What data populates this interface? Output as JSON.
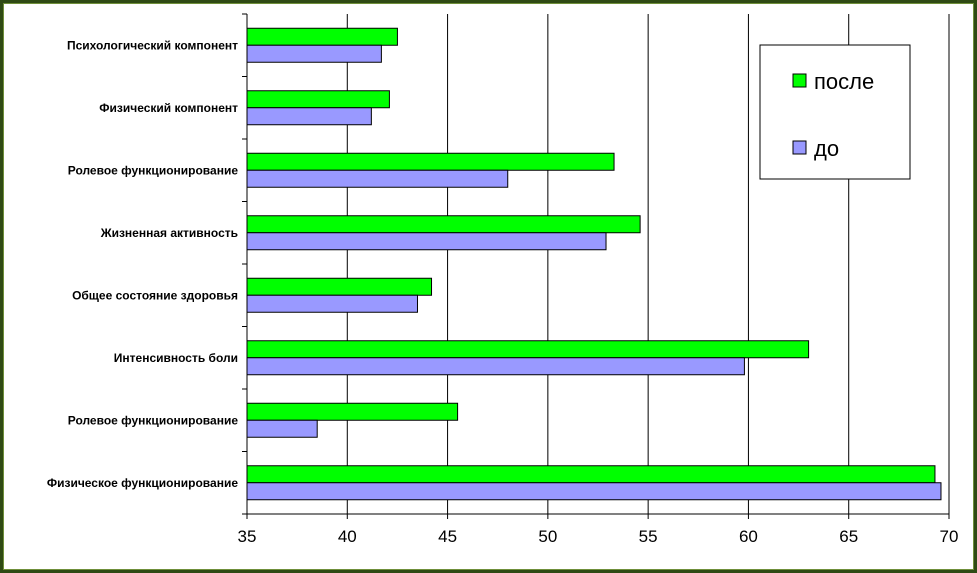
{
  "chart_data": {
    "type": "bar",
    "orientation": "horizontal",
    "categories": [
      "Психологический компонент",
      "Физический компонент",
      "Ролевое функционирование",
      "Жизненная активность",
      "Общее состояние здоровья",
      "Интенсивность боли",
      "Ролевое функционирование",
      "Физическое функционирование"
    ],
    "series": [
      {
        "name": "после",
        "color": "#00ff00",
        "values": [
          42.5,
          42.1,
          53.3,
          54.6,
          44.2,
          63.0,
          45.5,
          69.3
        ]
      },
      {
        "name": "до",
        "color": "#9999ff",
        "values": [
          41.7,
          41.2,
          48.0,
          52.9,
          43.5,
          59.8,
          38.5,
          69.6
        ]
      }
    ],
    "xlim": [
      35,
      70
    ],
    "xticks": [
      "35",
      "40",
      "45",
      "50",
      "55",
      "60",
      "65",
      "70"
    ],
    "grid": "vertical",
    "legend_position": "top-right"
  }
}
